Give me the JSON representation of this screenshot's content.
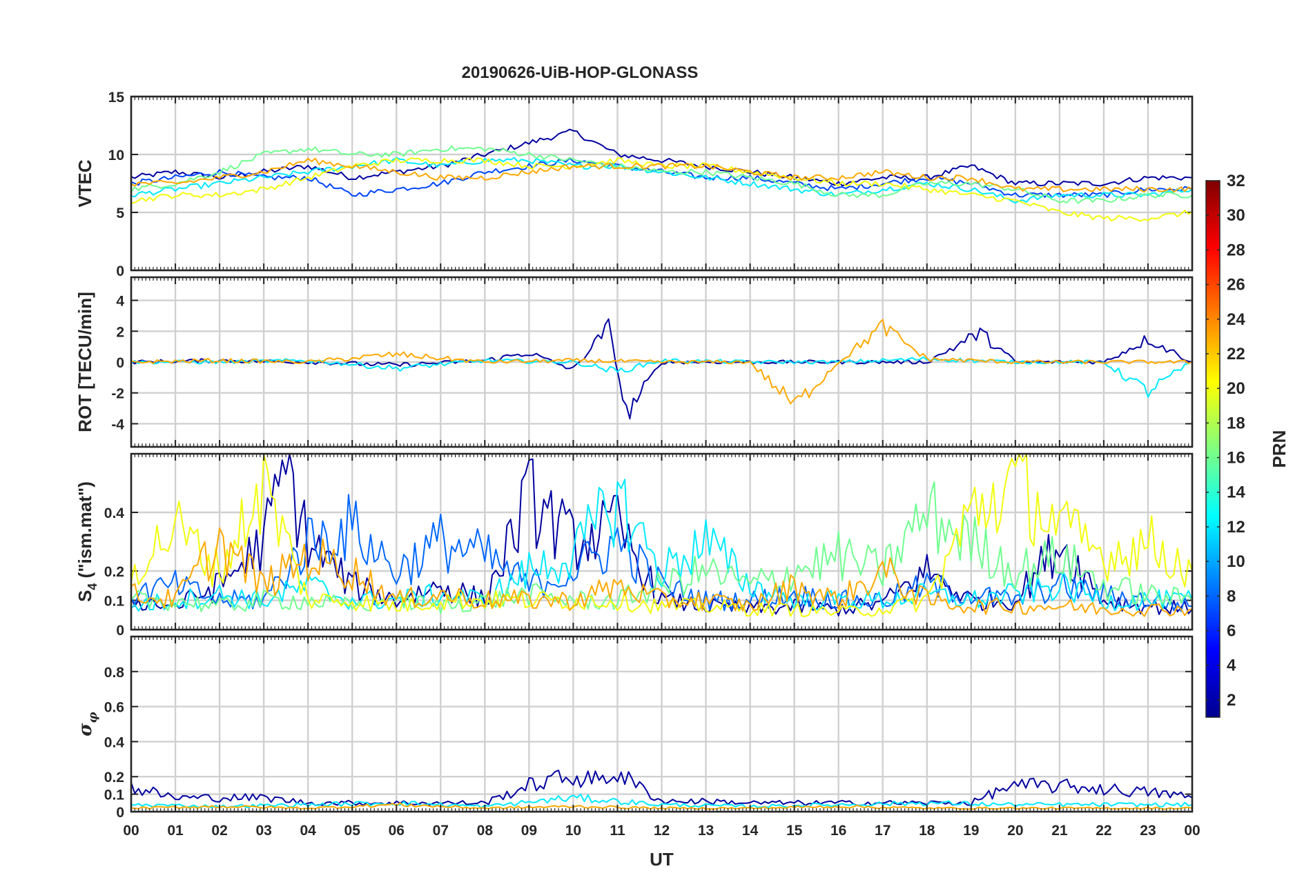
{
  "chart_data": {
    "type": "line",
    "title": "20190626-UiB-HOP-GLONASS",
    "xlabel": "UT",
    "x_ticks": [
      "00",
      "01",
      "02",
      "03",
      "04",
      "05",
      "06",
      "07",
      "08",
      "09",
      "10",
      "11",
      "12",
      "13",
      "14",
      "15",
      "16",
      "17",
      "18",
      "19",
      "20",
      "21",
      "22",
      "23",
      "00"
    ],
    "xlim": [
      0,
      24
    ],
    "grid": true,
    "colorbar": {
      "label": "PRN",
      "range": [
        1,
        32
      ],
      "colormap": "jet",
      "ticks": [
        "2",
        "4",
        "6",
        "8",
        "10",
        "12",
        "14",
        "16",
        "18",
        "20",
        "22",
        "24",
        "26",
        "28",
        "30",
        "32"
      ]
    },
    "panels": [
      {
        "id": "vtec",
        "ylabel": "VTEC",
        "ylim": [
          0,
          15
        ],
        "y_ticks": [
          "0",
          "5",
          "10",
          "15"
        ],
        "baseline": 8,
        "series": [
          {
            "prn": 2,
            "x": [
              0.0,
              1.0,
              2.0,
              3.0,
              4.0,
              5.0,
              6.0,
              7.0,
              8.0,
              9.0,
              10.0,
              11.0,
              12.0,
              13.0,
              14.0,
              15.0,
              16.0,
              17.0,
              18.0,
              19.0,
              20.0,
              21.0,
              22.0,
              23.0,
              24.0
            ],
            "y": [
              8.0,
              8.5,
              8.0,
              8.5,
              9.0,
              8.0,
              8.5,
              9.0,
              10.0,
              11.0,
              12.0,
              10.0,
              9.5,
              9.0,
              8.5,
              8.0,
              7.5,
              8.0,
              8.0,
              9.0,
              7.5,
              7.5,
              7.5,
              8.0,
              8.0
            ]
          },
          {
            "prn": 7,
            "x": [
              0.0,
              1.0,
              2.0,
              3.0,
              4.0,
              5.0,
              6.0,
              7.0,
              8.0,
              9.0,
              10.0,
              11.0,
              12.0,
              13.0,
              14.0,
              15.0,
              16.0,
              17.0,
              18.0,
              19.0,
              20.0,
              21.0,
              22.0,
              23.0,
              24.0
            ],
            "y": [
              7.5,
              8.0,
              8.5,
              8.0,
              8.0,
              6.5,
              7.0,
              7.5,
              8.5,
              9.0,
              9.5,
              9.0,
              8.5,
              8.0,
              8.0,
              7.5,
              7.0,
              7.5,
              8.0,
              7.5,
              6.5,
              6.5,
              6.5,
              7.0,
              7.0
            ]
          },
          {
            "prn": 12,
            "x": [
              0.0,
              1.0,
              2.0,
              3.0,
              4.0,
              5.0,
              6.0,
              7.0,
              8.0,
              9.0,
              10.0,
              11.0,
              12.0,
              13.0,
              14.0,
              15.0,
              16.0,
              17.0,
              18.0,
              19.0,
              20.0,
              21.0,
              22.0,
              23.0,
              24.0
            ],
            "y": [
              6.5,
              7.0,
              7.5,
              8.0,
              8.5,
              9.0,
              9.5,
              9.0,
              9.5,
              9.5,
              9.0,
              9.0,
              8.5,
              8.0,
              7.5,
              7.0,
              6.5,
              7.0,
              7.5,
              7.0,
              6.0,
              6.5,
              6.5,
              6.5,
              7.0
            ]
          },
          {
            "prn": 16,
            "x": [
              0.0,
              1.0,
              2.0,
              3.0,
              4.0,
              5.0,
              6.0,
              7.0,
              8.0,
              9.0,
              10.0,
              11.0,
              12.0,
              13.0,
              14.0,
              15.0,
              16.0,
              17.0,
              18.0,
              19.0,
              20.0,
              21.0,
              22.0,
              23.0,
              24.0
            ],
            "y": [
              7.0,
              7.5,
              8.5,
              10.0,
              10.5,
              10.0,
              10.0,
              10.5,
              10.5,
              10.0,
              9.5,
              9.0,
              8.5,
              8.5,
              8.0,
              7.5,
              6.5,
              6.5,
              7.5,
              7.5,
              7.0,
              6.0,
              6.0,
              6.5,
              6.5
            ]
          },
          {
            "prn": 20,
            "x": [
              0.0,
              1.0,
              2.0,
              3.0,
              4.0,
              5.0,
              6.0,
              7.0,
              8.0,
              9.0,
              10.0,
              11.0,
              12.0,
              13.0,
              14.0,
              15.0,
              16.0,
              17.0,
              18.0,
              19.0,
              20.0,
              21.0,
              22.0,
              23.0,
              24.0
            ],
            "y": [
              6.0,
              6.5,
              6.5,
              7.0,
              8.0,
              9.0,
              9.5,
              9.5,
              9.5,
              9.0,
              9.0,
              9.5,
              9.0,
              9.0,
              8.5,
              8.0,
              7.5,
              7.5,
              7.0,
              6.5,
              6.0,
              5.0,
              4.5,
              4.5,
              5.0
            ]
          },
          {
            "prn": 23,
            "x": [
              0.0,
              1.0,
              2.0,
              3.0,
              4.0,
              5.0,
              6.0,
              7.0,
              8.0,
              9.0,
              10.0,
              11.0,
              12.0,
              13.0,
              14.0,
              15.0,
              16.0,
              17.0,
              18.0,
              19.0,
              20.0,
              21.0,
              22.0,
              23.0,
              24.0
            ],
            "y": [
              7.5,
              7.5,
              8.0,
              8.5,
              9.5,
              9.0,
              8.5,
              8.0,
              8.0,
              8.5,
              9.0,
              9.0,
              9.0,
              9.0,
              8.5,
              8.0,
              8.0,
              8.5,
              8.0,
              8.0,
              7.0,
              7.0,
              7.0,
              7.0,
              7.0
            ]
          }
        ]
      },
      {
        "id": "rot",
        "ylabel": "ROT [TECU/min]",
        "ylim": [
          -5.5,
          5.5
        ],
        "y_ticks": [
          "-4",
          "-2",
          "0",
          "2",
          "4"
        ],
        "baseline": 0,
        "series": [
          {
            "prn": 2,
            "x": [
              0.0,
              2.0,
              4.0,
              6.0,
              8.0,
              9.0,
              10.0,
              10.8,
              11.2,
              12.0,
              14.0,
              16.0,
              18.0,
              19.2,
              20.0,
              22.0,
              23.0,
              24.0
            ],
            "y": [
              0.0,
              0.1,
              0.0,
              -0.2,
              0.1,
              0.6,
              -0.5,
              2.3,
              -3.4,
              0.0,
              0.0,
              0.0,
              0.0,
              1.9,
              0.0,
              0.0,
              1.5,
              0.0
            ]
          },
          {
            "prn": 12,
            "x": [
              0.0,
              2.0,
              4.0,
              6.0,
              8.0,
              10.0,
              11.0,
              12.0,
              14.0,
              16.0,
              18.0,
              20.0,
              22.0,
              23.0,
              24.0
            ],
            "y": [
              0.0,
              0.0,
              0.1,
              -0.4,
              0.1,
              0.0,
              -0.6,
              0.1,
              0.0,
              0.0,
              0.2,
              0.0,
              0.0,
              -1.9,
              0.0
            ]
          },
          {
            "prn": 23,
            "x": [
              0.0,
              2.0,
              4.0,
              6.0,
              8.0,
              10.0,
              12.0,
              14.0,
              15.0,
              16.0,
              17.0,
              18.0,
              20.0,
              22.0,
              24.0
            ],
            "y": [
              0.0,
              0.1,
              0.0,
              0.5,
              0.0,
              0.1,
              0.0,
              0.0,
              -2.8,
              0.0,
              2.3,
              0.2,
              0.0,
              0.0,
              0.0
            ]
          }
        ]
      },
      {
        "id": "s4",
        "ylabel": "S4 (\"ism.mat\")",
        "ylabel_main": "S",
        "ylabel_sub": "4",
        "ylabel_rest": " (\"ism.mat\")",
        "ylim": [
          0,
          0.6
        ],
        "y_ticks": [
          "0",
          "0.1",
          "0.2",
          "0.4"
        ],
        "baseline": 0.1,
        "series": [
          {
            "prn": 2,
            "x": [
              0.0,
              1.0,
              2.0,
              3.0,
              3.5,
              4.0,
              5.0,
              6.0,
              7.0,
              8.0,
              9.0,
              10.0,
              11.0,
              12.0,
              13.0,
              14.0,
              15.0,
              16.0,
              17.0,
              18.0,
              19.0,
              20.0,
              21.0,
              22.0,
              23.0,
              24.0
            ],
            "y": [
              0.1,
              0.08,
              0.15,
              0.3,
              0.55,
              0.3,
              0.15,
              0.1,
              0.15,
              0.1,
              0.45,
              0.3,
              0.35,
              0.1,
              0.08,
              0.07,
              0.08,
              0.07,
              0.09,
              0.2,
              0.1,
              0.1,
              0.3,
              0.1,
              0.08,
              0.07
            ]
          },
          {
            "prn": 8,
            "x": [
              0.0,
              1.0,
              2.0,
              3.0,
              4.0,
              5.0,
              6.0,
              7.0,
              8.0,
              9.0,
              10.0,
              11.0,
              12.0,
              13.0,
              14.0,
              15.0,
              16.0,
              17.0,
              18.0,
              19.0,
              20.0,
              21.0,
              22.0,
              23.0,
              24.0
            ],
            "y": [
              0.12,
              0.15,
              0.1,
              0.1,
              0.3,
              0.35,
              0.2,
              0.3,
              0.25,
              0.15,
              0.2,
              0.3,
              0.15,
              0.1,
              0.1,
              0.12,
              0.1,
              0.1,
              0.15,
              0.12,
              0.1,
              0.15,
              0.12,
              0.1,
              0.08
            ]
          },
          {
            "prn": 12,
            "x": [
              0.0,
              1.0,
              2.0,
              3.0,
              4.0,
              5.0,
              6.0,
              7.0,
              8.0,
              9.0,
              10.0,
              11.0,
              12.0,
              13.0,
              14.0,
              15.0,
              16.0,
              17.0,
              18.0,
              19.0,
              20.0,
              21.0,
              22.0,
              23.0,
              24.0
            ],
            "y": [
              0.08,
              0.1,
              0.12,
              0.1,
              0.15,
              0.1,
              0.1,
              0.12,
              0.1,
              0.2,
              0.25,
              0.45,
              0.2,
              0.3,
              0.15,
              0.1,
              0.1,
              0.1,
              0.12,
              0.1,
              0.12,
              0.15,
              0.1,
              0.1,
              0.1
            ]
          },
          {
            "prn": 16,
            "x": [
              0.0,
              1.0,
              2.0,
              3.0,
              4.0,
              5.0,
              6.0,
              7.0,
              8.0,
              9.0,
              10.0,
              11.0,
              12.0,
              13.0,
              14.0,
              15.0,
              16.0,
              17.0,
              18.0,
              19.0,
              20.0,
              21.0,
              22.0,
              23.0,
              24.0
            ],
            "y": [
              0.1,
              0.1,
              0.08,
              0.1,
              0.1,
              0.08,
              0.1,
              0.08,
              0.1,
              0.12,
              0.1,
              0.1,
              0.15,
              0.2,
              0.15,
              0.2,
              0.25,
              0.2,
              0.4,
              0.3,
              0.2,
              0.25,
              0.15,
              0.12,
              0.1
            ]
          },
          {
            "prn": 20,
            "x": [
              0.0,
              1.0,
              2.0,
              3.0,
              4.0,
              5.0,
              6.0,
              7.0,
              8.0,
              9.0,
              10.0,
              11.0,
              12.0,
              13.0,
              14.0,
              15.0,
              16.0,
              17.0,
              18.0,
              19.0,
              20.0,
              21.0,
              22.0,
              23.0,
              24.0
            ],
            "y": [
              0.2,
              0.35,
              0.2,
              0.5,
              0.1,
              0.1,
              0.08,
              0.1,
              0.1,
              0.1,
              0.1,
              0.1,
              0.08,
              0.08,
              0.07,
              0.07,
              0.06,
              0.07,
              0.1,
              0.4,
              0.5,
              0.35,
              0.25,
              0.3,
              0.2
            ]
          },
          {
            "prn": 23,
            "x": [
              0.0,
              1.0,
              2.0,
              3.0,
              4.0,
              5.0,
              6.0,
              7.0,
              8.0,
              9.0,
              10.0,
              11.0,
              12.0,
              13.0,
              14.0,
              15.0,
              16.0,
              17.0,
              18.0,
              19.0,
              20.0,
              21.0,
              22.0,
              23.0,
              24.0
            ],
            "y": [
              0.12,
              0.1,
              0.3,
              0.15,
              0.25,
              0.2,
              0.1,
              0.12,
              0.1,
              0.1,
              0.1,
              0.15,
              0.1,
              0.1,
              0.08,
              0.15,
              0.1,
              0.2,
              0.1,
              0.08,
              0.08,
              0.08,
              0.07,
              0.07,
              0.07
            ]
          }
        ]
      },
      {
        "id": "sigma",
        "ylabel": "σφ",
        "ylabel_main": "σ",
        "ylabel_sub": "φ",
        "ylim": [
          0,
          1
        ],
        "y_ticks": [
          "0",
          "0.1",
          "0.2",
          "0.4",
          "0.6",
          "0.8"
        ],
        "baseline": 0.03,
        "series": [
          {
            "prn": 2,
            "x": [
              0.0,
              1.0,
              2.0,
              3.0,
              4.0,
              5.0,
              6.0,
              7.0,
              8.0,
              9.0,
              9.5,
              10.0,
              10.5,
              11.0,
              12.0,
              13.0,
              14.0,
              15.0,
              16.0,
              17.0,
              18.0,
              19.0,
              19.8,
              20.5,
              21.5,
              22.5,
              23.5,
              24.0
            ],
            "y": [
              0.14,
              0.08,
              0.08,
              0.08,
              0.05,
              0.05,
              0.05,
              0.05,
              0.05,
              0.15,
              0.18,
              0.2,
              0.18,
              0.22,
              0.06,
              0.06,
              0.05,
              0.05,
              0.05,
              0.05,
              0.05,
              0.05,
              0.14,
              0.15,
              0.14,
              0.12,
              0.1,
              0.08
            ]
          },
          {
            "prn": 12,
            "x": [
              0.0,
              2.0,
              4.0,
              6.0,
              8.0,
              10.0,
              12.0,
              14.0,
              16.0,
              18.0,
              20.0,
              22.0,
              24.0
            ],
            "y": [
              0.04,
              0.03,
              0.04,
              0.05,
              0.03,
              0.08,
              0.04,
              0.03,
              0.04,
              0.05,
              0.04,
              0.04,
              0.04
            ]
          },
          {
            "prn": 23,
            "x": [
              0.0,
              2.0,
              4.0,
              6.0,
              8.0,
              10.0,
              12.0,
              14.0,
              16.0,
              18.0,
              20.0,
              22.0,
              24.0
            ],
            "y": [
              0.02,
              0.03,
              0.02,
              0.04,
              0.02,
              0.03,
              0.02,
              0.02,
              0.03,
              0.02,
              0.02,
              0.02,
              0.02
            ]
          }
        ]
      }
    ]
  }
}
